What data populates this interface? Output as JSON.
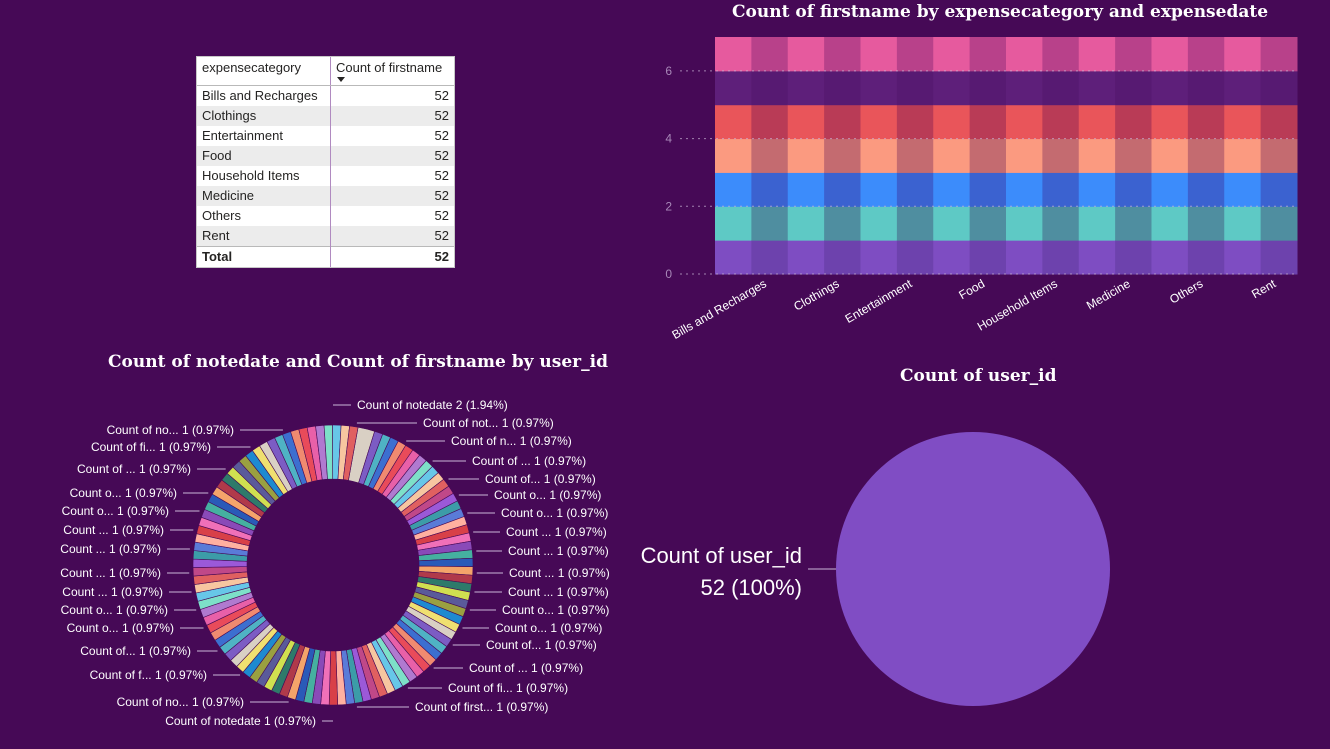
{
  "table": {
    "col1": "expensecategory",
    "col2": "Count of firstname",
    "rows": [
      {
        "label": "Bills and Recharges",
        "value": "52"
      },
      {
        "label": "Clothings",
        "value": "52"
      },
      {
        "label": "Entertainment",
        "value": "52"
      },
      {
        "label": "Food",
        "value": "52"
      },
      {
        "label": "Household Items",
        "value": "52"
      },
      {
        "label": "Medicine",
        "value": "52"
      },
      {
        "label": "Others",
        "value": "52"
      },
      {
        "label": "Rent",
        "value": "52"
      }
    ],
    "total_label": "Total",
    "total_value": "52"
  },
  "heatmap": {
    "title": "Count of firstname by expensecategory and expensedate",
    "categories": [
      "Bills and Recharges",
      "Clothings",
      "Entertainment",
      "Food",
      "Household Items",
      "Medicine",
      "Others",
      "Rent"
    ],
    "y_ticks": [
      "0",
      "2",
      "4",
      "6"
    ],
    "band_colors": [
      "#7e4dc2",
      "#5ec9c5",
      "#3c8cfb",
      "#fb9a80",
      "#e9555a",
      "#5e1f7a",
      "#e65a9e"
    ],
    "band_colors_alt": [
      "#6d42ad",
      "#4f8ea0",
      "#3b62d0",
      "#c46b70",
      "#b93b56",
      "#571a72",
      "#b8418a"
    ]
  },
  "donut": {
    "title": "Count of notedate and Count of firstname by user_id",
    "left_labels": [
      "Count of no... 1 (0.97%)",
      "Count of fi... 1 (0.97%)",
      "Count of ... 1 (0.97%)",
      "Count o... 1 (0.97%)",
      "Count o... 1 (0.97%)",
      "Count ... 1 (0.97%)",
      "Count ... 1 (0.97%)",
      "Count ... 1 (0.97%)",
      "Count ... 1 (0.97%)",
      "Count o... 1 (0.97%)",
      "Count o... 1 (0.97%)",
      "Count of... 1 (0.97%)",
      "Count of f... 1 (0.97%)",
      "Count of no... 1 (0.97%)",
      "Count of notedate 1 (0.97%)"
    ],
    "right_labels": [
      "Count of notedate 2 (1.94%)",
      "Count of not... 1 (0.97%)",
      "Count of n... 1 (0.97%)",
      "Count of ... 1 (0.97%)",
      "Count of... 1 (0.97%)",
      "Count o... 1 (0.97%)",
      "Count o... 1 (0.97%)",
      "Count ... 1 (0.97%)",
      "Count ... 1 (0.97%)",
      "Count ... 1 (0.97%)",
      "Count ... 1 (0.97%)",
      "Count o... 1 (0.97%)",
      "Count o... 1 (0.97%)",
      "Count of... 1 (0.97%)",
      "Count of ... 1 (0.97%)",
      "Count of fi... 1 (0.97%)",
      "Count of first... 1 (0.97%)"
    ],
    "palette": [
      "#d9d0c4",
      "#7c5cc4",
      "#4fb3c4",
      "#3c6fd0",
      "#f08a70",
      "#e94b5a",
      "#e860a8",
      "#b07ad0",
      "#7de0c8",
      "#67c7e8",
      "#f7c6a0",
      "#e06060",
      "#c04888",
      "#9b59d8",
      "#3c9ca8",
      "#5a7bd8",
      "#ffb0a0",
      "#d84048",
      "#f070b8",
      "#8a4ab8",
      "#45b0a0",
      "#2a5ab8",
      "#f4a46a",
      "#b03a4a",
      "#2e7a6a",
      "#d0e050",
      "#5a5a9a",
      "#9aa040",
      "#1e8ad0",
      "#f0e070"
    ]
  },
  "pie": {
    "title": "Count of user_id",
    "label_line1": "Count of user_id",
    "label_line2": "52 (100%)",
    "color": "#804dc4"
  },
  "chart_data": [
    {
      "type": "heatmap",
      "title": "Count of firstname by expensecategory and expensedate",
      "categories": [
        "Bills and Recharges",
        "Clothings",
        "Entertainment",
        "Food",
        "Household Items",
        "Medicine",
        "Others",
        "Rent"
      ],
      "ylim": [
        0,
        7
      ],
      "y_ticks": [
        0,
        2,
        4,
        6
      ],
      "series": [
        {
          "values": [
            7,
            7,
            7,
            7,
            7,
            7,
            7,
            7
          ]
        }
      ]
    },
    {
      "type": "pie",
      "title": "Count of notedate and Count of firstname by user_id",
      "donut": true,
      "series": [
        {
          "name": "Count of notedate",
          "values": [
            2
          ]
        },
        {
          "name": "Count of notedate",
          "values": [
            1
          ]
        }
      ],
      "slice_percent": {
        "2": "1.94%",
        "1": "0.97%"
      }
    },
    {
      "type": "pie",
      "title": "Count of user_id",
      "categories": [
        "Count of user_id"
      ],
      "values": [
        52
      ],
      "percent": [
        "100%"
      ]
    }
  ]
}
